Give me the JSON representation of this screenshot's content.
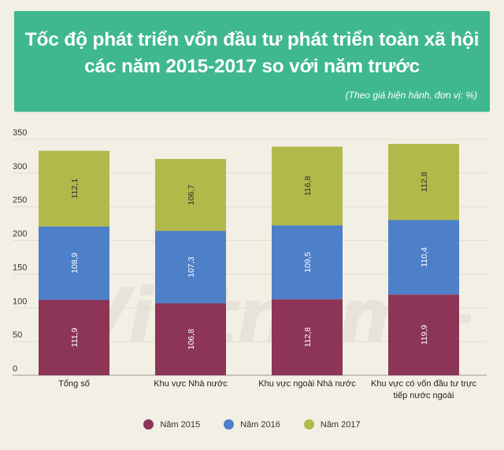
{
  "header": {
    "title": "Tốc độ phát triển vốn đầu tư phát triển toàn xã hội\ncác năm 2015-2017 so với năm trước",
    "subtitle": "(Theo giá hiện hành, đơn vị: %)",
    "background_color": "#3fb88e"
  },
  "watermark": "Vietnam+",
  "chart_data": {
    "type": "bar",
    "stacked": true,
    "categories": [
      "Tổng số",
      "Khu vực Nhà nước",
      "Khu vực ngoài Nhà nước",
      "Khu vực có vốn đầu tư trực tiếp nước ngoài"
    ],
    "series": [
      {
        "name": "Năm 2015",
        "values": [
          111.9,
          106.8,
          112.8,
          119.9
        ],
        "labels": [
          "111,9",
          "106,8",
          "112,8",
          "119,9"
        ],
        "color": "#8c3556"
      },
      {
        "name": "Năm 2016",
        "values": [
          108.9,
          107.3,
          109.5,
          110.4
        ],
        "labels": [
          "108,9",
          "107,3",
          "109,5",
          "110,4"
        ],
        "color": "#4e7fc9"
      },
      {
        "name": "Năm 2017",
        "values": [
          112.1,
          106.7,
          116.8,
          112.8
        ],
        "labels": [
          "112,1",
          "106,7",
          "116,8",
          "112,8"
        ],
        "color": "#b1b94b"
      }
    ],
    "ylim": [
      0,
      350
    ],
    "yticks": [
      0,
      50,
      100,
      150,
      200,
      250,
      300,
      350
    ],
    "grid": true,
    "legend_position": "bottom"
  }
}
